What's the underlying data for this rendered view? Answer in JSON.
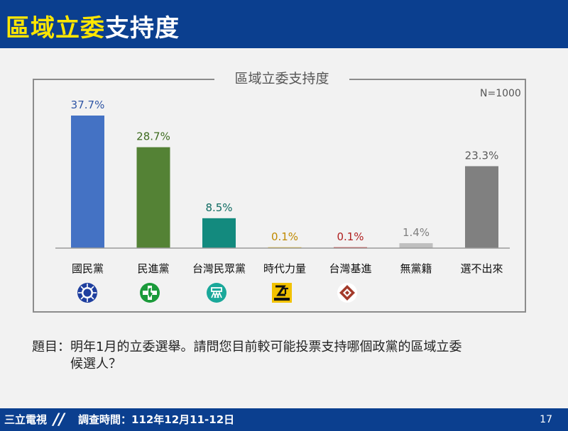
{
  "header": {
    "title_highlight": "區域立委",
    "title_rest": "支持度"
  },
  "chart_data": {
    "type": "bar",
    "title": "區域立委支持度",
    "note": "N=1000",
    "categories": [
      "國民黨",
      "民進黨",
      "台灣民眾黨",
      "時代力量",
      "台灣基進",
      "無黨籍",
      "選不出來"
    ],
    "values": [
      37.7,
      28.7,
      8.5,
      0.1,
      0.1,
      1.4,
      23.3
    ],
    "value_labels": [
      "37.7%",
      "28.7%",
      "8.5%",
      "0.1%",
      "0.1%",
      "1.4%",
      "23.3%"
    ],
    "bar_colors": [
      "#4472c4",
      "#548235",
      "#138a7e",
      "#e3b000",
      "#c00000",
      "#bfbfbf",
      "#808080"
    ],
    "label_colors": [
      "#2f55a5",
      "#3d6b1f",
      "#0e6b62",
      "#c08a00",
      "#b02020",
      "#7f7f7f",
      "#595959"
    ],
    "ylim": [
      0,
      40
    ],
    "party_logos": [
      "kmt-logo",
      "dpp-logo",
      "tpp-logo",
      "npp-logo",
      "tsp-logo",
      "",
      ""
    ]
  },
  "question": {
    "line1": "題目：明年1月的立委選舉。請問您目前較可能投票支持哪個政黨的區域立委",
    "line2": "候選人？"
  },
  "footer": {
    "brand": "三立電視",
    "survey_date": "調查時間：112年12月11-12日",
    "page": "17"
  }
}
